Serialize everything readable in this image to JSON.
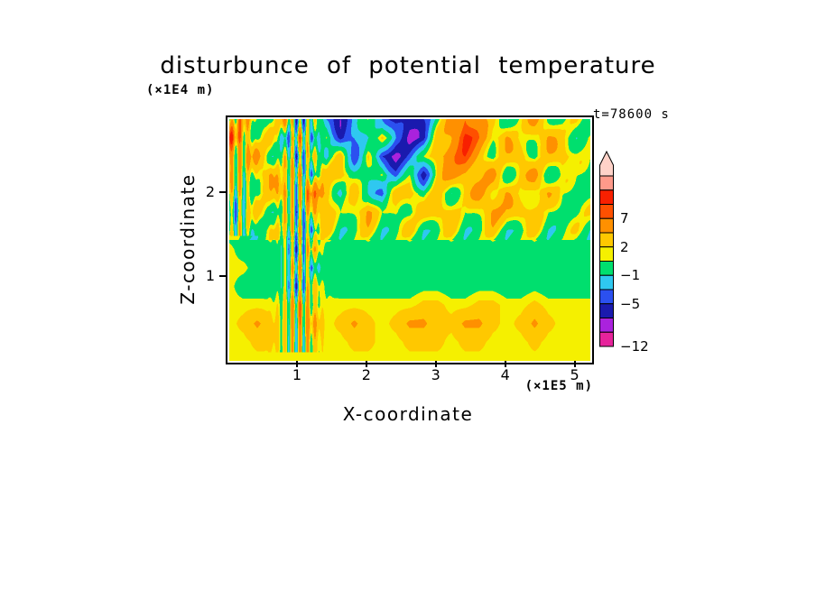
{
  "chart_data": {
    "type": "heatmap",
    "title": "disturbunce of potential temperature",
    "timestamp_label": "t=78600 s",
    "xlabel": "X-coordinate",
    "x_unit": "(×1E5 m)",
    "ylabel": "Z-coordinate",
    "y_unit": "(×1E4 m)",
    "x_range": [
      0,
      5.2
    ],
    "z_range": [
      0,
      2.9
    ],
    "x_ticks": [
      1,
      2,
      3,
      4,
      5
    ],
    "z_ticks": [
      1,
      2
    ],
    "levels": [
      -12,
      -9,
      -7,
      -5,
      -3,
      -1,
      1,
      2,
      4,
      7,
      9,
      11,
      13
    ],
    "colors": [
      "#e6239b",
      "#aa22dd",
      "#1a1aae",
      "#2b50f0",
      "#2fc8f0",
      "#00df6e",
      "#f5f000",
      "#ffc800",
      "#ff9000",
      "#ff5000",
      "#f82000",
      "#ff9a8a"
    ],
    "overflow_color": "#ffd2c8",
    "colorbar_tick_values": [
      7,
      2,
      -1,
      -5,
      -12
    ],
    "colorbar_tick_labels": [
      "7",
      "2",
      "−1",
      "−5",
      "−12"
    ],
    "grid": [
      [
        0,
        4.5,
        1.5,
        0,
        4.5,
        -2,
        1.5,
        -4,
        -6,
        -2,
        0,
        -2,
        -6,
        -6.8,
        -4,
        0,
        4.5,
        8,
        4.5,
        1.5,
        0,
        1.5,
        4.5,
        1.5,
        0,
        1.5,
        0
      ],
      [
        8,
        4.5,
        0,
        2.5,
        -2,
        4.5,
        -4,
        2.5,
        -6,
        -4,
        0,
        2.5,
        -4,
        -6.8,
        -6,
        2.5,
        5,
        10,
        6,
        2.5,
        4.5,
        0,
        2.5,
        4.5,
        1.5,
        0,
        1.5
      ],
      [
        4.5,
        2.5,
        4.5,
        0,
        2.5,
        -4,
        4.5,
        -2,
        2.5,
        -4,
        2.5,
        -6,
        -6.8,
        -4,
        0,
        4.5,
        6,
        8,
        4.5,
        0,
        2.5,
        4.5,
        0,
        2.5,
        4.5,
        1.5,
        0
      ],
      [
        2.5,
        0,
        2.5,
        4.5,
        0,
        4.5,
        -2,
        2.5,
        4.5,
        0,
        -2,
        2.5,
        -4,
        0,
        -5.5,
        2.5,
        4.5,
        4.5,
        2.5,
        4.5,
        0,
        2.5,
        4.5,
        0,
        1.5,
        0,
        1.5
      ],
      [
        0,
        2.5,
        0,
        2.5,
        4.5,
        0,
        6,
        4.5,
        -2,
        2.5,
        0,
        -4,
        2.5,
        4.5,
        0,
        2.5,
        0,
        2.5,
        4.5,
        2.5,
        4.5,
        0,
        2.5,
        4.5,
        0,
        1.5,
        0
      ],
      [
        0,
        0,
        2.5,
        0,
        2.5,
        -3,
        5,
        2.5,
        0,
        2.5,
        4.5,
        0,
        2.5,
        0,
        2.5,
        4.5,
        2.5,
        0,
        2.5,
        4.5,
        2.5,
        4.5,
        2.5,
        0,
        1.5,
        0,
        1.5
      ],
      [
        0,
        0,
        0,
        2.5,
        0,
        3,
        -2,
        3,
        0,
        0,
        2.5,
        0,
        0,
        2.5,
        0,
        0,
        2.5,
        0,
        0,
        2.5,
        0,
        0,
        2.5,
        0,
        0,
        1.5,
        0
      ],
      [
        1.5,
        0,
        0,
        0,
        0,
        -2,
        4,
        0,
        0,
        0,
        0,
        0,
        0,
        0,
        0,
        0,
        0,
        0,
        0,
        0,
        0,
        0,
        0,
        0,
        0,
        0,
        0
      ],
      [
        1.5,
        1.5,
        0,
        0,
        0,
        3,
        -2,
        0,
        0,
        0,
        0,
        0,
        0,
        0,
        0,
        0,
        0,
        0,
        0,
        0,
        0,
        0,
        0,
        0,
        0,
        0,
        0
      ],
      [
        1.5,
        0,
        0,
        0,
        0,
        -2,
        3,
        0.5,
        0,
        0,
        0,
        0,
        0,
        0,
        0.5,
        0.5,
        0,
        0,
        0.5,
        0.5,
        0,
        0,
        0.5,
        0,
        0,
        0,
        0
      ],
      [
        1.5,
        1.5,
        1.5,
        1.5,
        1.5,
        4,
        1.5,
        1.5,
        1.5,
        1.5,
        1.5,
        1.5,
        1.5,
        1.5,
        2.5,
        2.5,
        1.5,
        1.5,
        2.5,
        2.5,
        1.5,
        1.5,
        2.5,
        1.5,
        1.5,
        1.5,
        1.5
      ],
      [
        1.5,
        2.5,
        4.5,
        2.5,
        1.5,
        2.5,
        4.5,
        1.5,
        2.5,
        4.5,
        2.5,
        1.5,
        2.5,
        4.5,
        4.5,
        2.5,
        2.5,
        4.5,
        4.5,
        2.5,
        1.5,
        2.5,
        4.5,
        2.5,
        1.5,
        1.5,
        1.5
      ],
      [
        1.5,
        1.5,
        2.5,
        2.5,
        1.5,
        1.5,
        2.5,
        1.5,
        1.5,
        2.5,
        2.5,
        1.5,
        1.5,
        2.5,
        2.5,
        2.5,
        1.5,
        2.5,
        2.5,
        1.5,
        1.5,
        1.5,
        2.5,
        1.5,
        1.5,
        1.5,
        1.5
      ],
      [
        1.5,
        1.5,
        1.5,
        1.5,
        1.5,
        1.5,
        1.5,
        1.5,
        1.5,
        1.5,
        1.5,
        1.5,
        1.5,
        1.5,
        1.5,
        1.5,
        1.5,
        1.5,
        1.5,
        1.5,
        1.5,
        1.5,
        1.5,
        1.5,
        1.5,
        1.5,
        1.5
      ]
    ],
    "texture_features": [
      {
        "type": "vertical_stripes",
        "x": 1.0,
        "sigma": 0.22,
        "z_min": 0.1,
        "z_max": 2.9,
        "amplitude": 4.5,
        "wavelength": 0.11
      },
      {
        "type": "vertical_stripes",
        "x": 0.12,
        "sigma": 0.18,
        "z_min": 1.5,
        "z_max": 2.9,
        "amplitude": 3.5,
        "wavelength": 0.12
      },
      {
        "type": "diagonal_waves",
        "z_min": 1.45,
        "amplitude": 1.2,
        "wavelength": 0.6,
        "tilt": 0.9
      }
    ]
  }
}
